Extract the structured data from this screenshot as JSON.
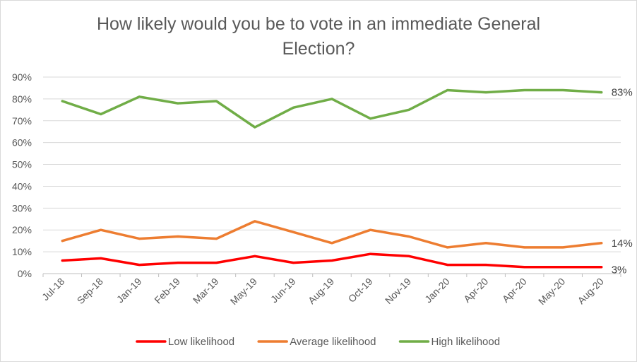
{
  "chart_data": {
    "type": "line",
    "title": "How likely would you be to vote in an immediate General Election?",
    "categories": [
      "Jul-18",
      "Sep-18",
      "Jan-19",
      "Feb-19",
      "Mar-19",
      "May-19",
      "Jun-19",
      "Aug-19",
      "Oct-19",
      "Nov-19",
      "Jan-20",
      "Apr-20",
      "Apr-20",
      "May-20",
      "Aug-20"
    ],
    "y_ticks": [
      "0%",
      "10%",
      "20%",
      "30%",
      "40%",
      "50%",
      "60%",
      "70%",
      "80%",
      "90%"
    ],
    "ylim": [
      0,
      90
    ],
    "y_unit": "%",
    "grid": true,
    "legend_position": "bottom",
    "series": [
      {
        "name": "Low likelihood",
        "color": "#ff0000",
        "values": [
          6,
          7,
          4,
          5,
          5,
          8,
          5,
          6,
          9,
          8,
          4,
          4,
          3,
          3,
          3
        ],
        "end_label": "3%"
      },
      {
        "name": "Average likelihood",
        "color": "#ed7d31",
        "values": [
          15,
          20,
          16,
          17,
          16,
          24,
          19,
          14,
          20,
          17,
          12,
          14,
          12,
          12,
          14
        ],
        "end_label": "14%"
      },
      {
        "name": "High likelihood",
        "color": "#70ad47",
        "values": [
          79,
          73,
          81,
          78,
          79,
          67,
          76,
          80,
          71,
          75,
          84,
          83,
          84,
          84,
          83
        ],
        "end_label": "83%"
      }
    ]
  }
}
